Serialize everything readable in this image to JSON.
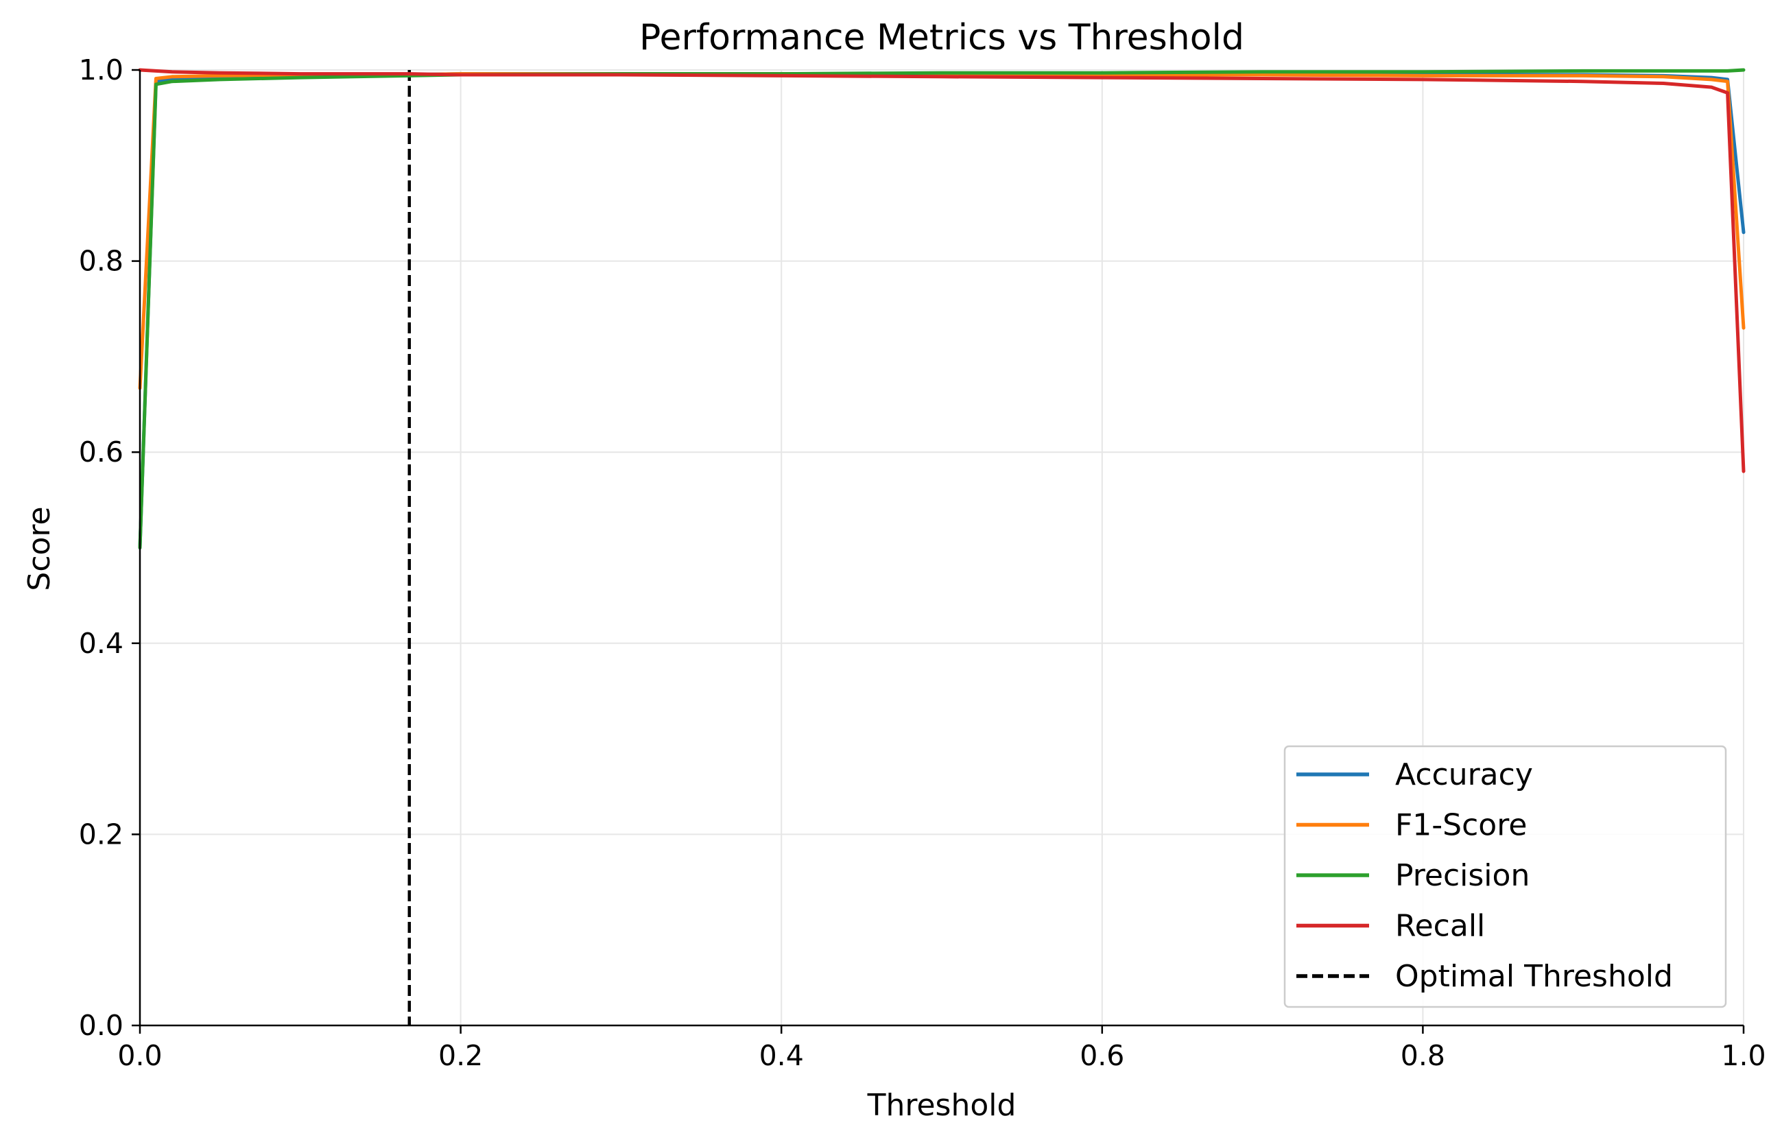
{
  "chart_data": {
    "type": "line",
    "title": "Performance Metrics vs Threshold",
    "xlabel": "Threshold",
    "ylabel": "Score",
    "xlim": [
      0.0,
      1.0
    ],
    "ylim": [
      0.0,
      1.0
    ],
    "xticks": [
      "0.0",
      "0.2",
      "0.4",
      "0.6",
      "0.8",
      "1.0"
    ],
    "yticks": [
      "0.0",
      "0.2",
      "0.4",
      "0.6",
      "0.8",
      "1.0"
    ],
    "grid": true,
    "legend_position": "lower-right",
    "series": [
      {
        "name": "Accuracy",
        "color": "#1f77b4",
        "x": [
          0.0,
          0.01,
          0.02,
          0.05,
          0.1,
          0.168,
          0.2,
          0.3,
          0.4,
          0.5,
          0.6,
          0.7,
          0.8,
          0.9,
          0.95,
          0.98,
          0.99,
          1.0
        ],
        "y": [
          0.5,
          0.988,
          0.99,
          0.991,
          0.993,
          0.995,
          0.996,
          0.996,
          0.996,
          0.996,
          0.996,
          0.996,
          0.995,
          0.995,
          0.994,
          0.992,
          0.99,
          0.83
        ]
      },
      {
        "name": "F1-Score",
        "color": "#ff7f0e",
        "x": [
          0.0,
          0.01,
          0.02,
          0.05,
          0.1,
          0.168,
          0.2,
          0.3,
          0.4,
          0.5,
          0.6,
          0.7,
          0.8,
          0.9,
          0.95,
          0.98,
          0.99,
          1.0
        ],
        "y": [
          0.667,
          0.991,
          0.993,
          0.994,
          0.995,
          0.995,
          0.996,
          0.996,
          0.996,
          0.996,
          0.995,
          0.995,
          0.994,
          0.994,
          0.993,
          0.99,
          0.988,
          0.73
        ]
      },
      {
        "name": "Precision",
        "color": "#2ca02c",
        "x": [
          0.0,
          0.01,
          0.02,
          0.05,
          0.1,
          0.168,
          0.2,
          0.3,
          0.4,
          0.5,
          0.6,
          0.7,
          0.8,
          0.9,
          0.95,
          0.98,
          0.99,
          1.0
        ],
        "y": [
          0.5,
          0.985,
          0.988,
          0.99,
          0.992,
          0.994,
          0.995,
          0.996,
          0.996,
          0.997,
          0.997,
          0.998,
          0.998,
          0.999,
          0.999,
          0.999,
          0.999,
          1.0
        ]
      },
      {
        "name": "Recall",
        "color": "#d62728",
        "x": [
          0.0,
          0.01,
          0.02,
          0.05,
          0.1,
          0.168,
          0.2,
          0.3,
          0.4,
          0.5,
          0.6,
          0.7,
          0.8,
          0.9,
          0.95,
          0.98,
          0.99,
          1.0
        ],
        "y": [
          1.0,
          0.999,
          0.998,
          0.997,
          0.996,
          0.996,
          0.995,
          0.995,
          0.994,
          0.993,
          0.992,
          0.991,
          0.99,
          0.988,
          0.986,
          0.982,
          0.976,
          0.58
        ]
      }
    ],
    "reference_line": {
      "name": "Optimal Threshold",
      "x": 0.168,
      "color": "#000000",
      "style": "dashed"
    }
  }
}
